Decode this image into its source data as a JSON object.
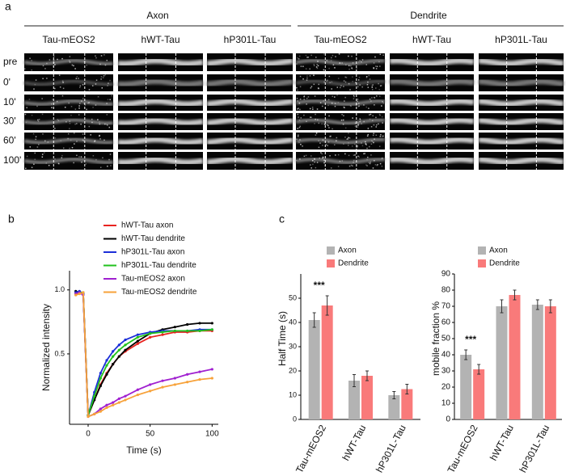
{
  "panel_labels": [
    "a",
    "b",
    "c"
  ],
  "image_panel": {
    "groups": [
      "Axon",
      "Dendrite"
    ],
    "columns": [
      "Tau-mEOS2",
      "hWT-Tau",
      "hP301L-Tau",
      "Tau-mEOS2",
      "hWT-Tau",
      "hP301L-Tau"
    ],
    "rows": [
      "pre",
      "0'",
      "10'",
      "30'",
      "60'",
      "100'"
    ]
  },
  "chart_data": [
    {
      "type": "line",
      "xlabel": "Time (s)",
      "ylabel": "Normalized intensity",
      "x": [
        -10,
        -7,
        -4,
        0,
        5,
        10,
        15,
        20,
        25,
        30,
        40,
        50,
        60,
        70,
        80,
        90,
        100
      ],
      "xlim": [
        -15,
        105
      ],
      "xticks": [
        0,
        50,
        100
      ],
      "ylim": [
        -0.05,
        1.15
      ],
      "yticks": [
        0.5,
        {
          "value": 1,
          "label": "1.0"
        }
      ],
      "series": [
        {
          "name": "hWT-Tau axon",
          "color": "#e8231f",
          "values": [
            0.98,
            0.97,
            0.98,
            0.02,
            0.14,
            0.26,
            0.35,
            0.42,
            0.48,
            0.52,
            0.58,
            0.63,
            0.65,
            0.67,
            0.67,
            0.68,
            0.68
          ]
        },
        {
          "name": "hWT-Tau dendrite",
          "color": "#000000",
          "values": [
            0.99,
            0.98,
            0.97,
            0.02,
            0.14,
            0.25,
            0.34,
            0.42,
            0.48,
            0.53,
            0.6,
            0.66,
            0.69,
            0.71,
            0.73,
            0.74,
            0.74
          ]
        },
        {
          "name": "hP301L-Tau axon",
          "color": "#1c2fd8",
          "values": [
            0.98,
            0.99,
            0.97,
            0.02,
            0.2,
            0.35,
            0.45,
            0.52,
            0.57,
            0.61,
            0.65,
            0.67,
            0.68,
            0.68,
            0.68,
            0.69,
            0.69
          ]
        },
        {
          "name": "hP301L-Tau dendrite",
          "color": "#22c21e",
          "values": [
            0.97,
            0.98,
            0.98,
            0.02,
            0.17,
            0.31,
            0.41,
            0.48,
            0.53,
            0.57,
            0.63,
            0.66,
            0.67,
            0.68,
            0.68,
            0.68,
            0.69
          ]
        },
        {
          "name": "Tau-mEOS2 axon",
          "color": "#a020d0",
          "values": [
            0.97,
            0.98,
            0.96,
            0.01,
            0.03,
            0.07,
            0.1,
            0.12,
            0.15,
            0.17,
            0.22,
            0.26,
            0.29,
            0.31,
            0.34,
            0.36,
            0.38
          ]
        },
        {
          "name": "Tau-mEOS2 dendrite",
          "color": "#f7a23a",
          "values": [
            0.96,
            0.97,
            0.98,
            0.01,
            0.03,
            0.05,
            0.08,
            0.1,
            0.12,
            0.14,
            0.18,
            0.21,
            0.24,
            0.26,
            0.28,
            0.3,
            0.31
          ]
        }
      ]
    },
    {
      "type": "bar",
      "ylabel": "Half Time (s)",
      "annotation": "***",
      "categories": [
        "Tau-mEOS2",
        "hWT-Tau",
        "hP301L-Tau"
      ],
      "ylim": [
        0,
        60
      ],
      "yticks": [
        0,
        10,
        20,
        30,
        40,
        50
      ],
      "series": [
        {
          "name": "Axon",
          "color": "#b3b3b3",
          "values": [
            41,
            16,
            10
          ],
          "errors": [
            3,
            2.5,
            1.5
          ]
        },
        {
          "name": "Dendrite",
          "color": "#f97a7a",
          "values": [
            47,
            18,
            12.5
          ],
          "errors": [
            4,
            2,
            2
          ]
        }
      ]
    },
    {
      "type": "bar",
      "ylabel": "mobile fraction %",
      "annotation": "***",
      "categories": [
        "Tau-mEOS2",
        "hWT-Tau",
        "hP301L-Tau"
      ],
      "ylim": [
        0,
        90
      ],
      "yticks": [
        0,
        10,
        20,
        30,
        40,
        50,
        60,
        70,
        80,
        90
      ],
      "series": [
        {
          "name": "Axon",
          "color": "#b3b3b3",
          "values": [
            40,
            70,
            71
          ],
          "errors": [
            3,
            4,
            3
          ]
        },
        {
          "name": "Dendrite",
          "color": "#f97a7a",
          "values": [
            31,
            77,
            70
          ],
          "errors": [
            3,
            3,
            4
          ]
        }
      ]
    }
  ]
}
